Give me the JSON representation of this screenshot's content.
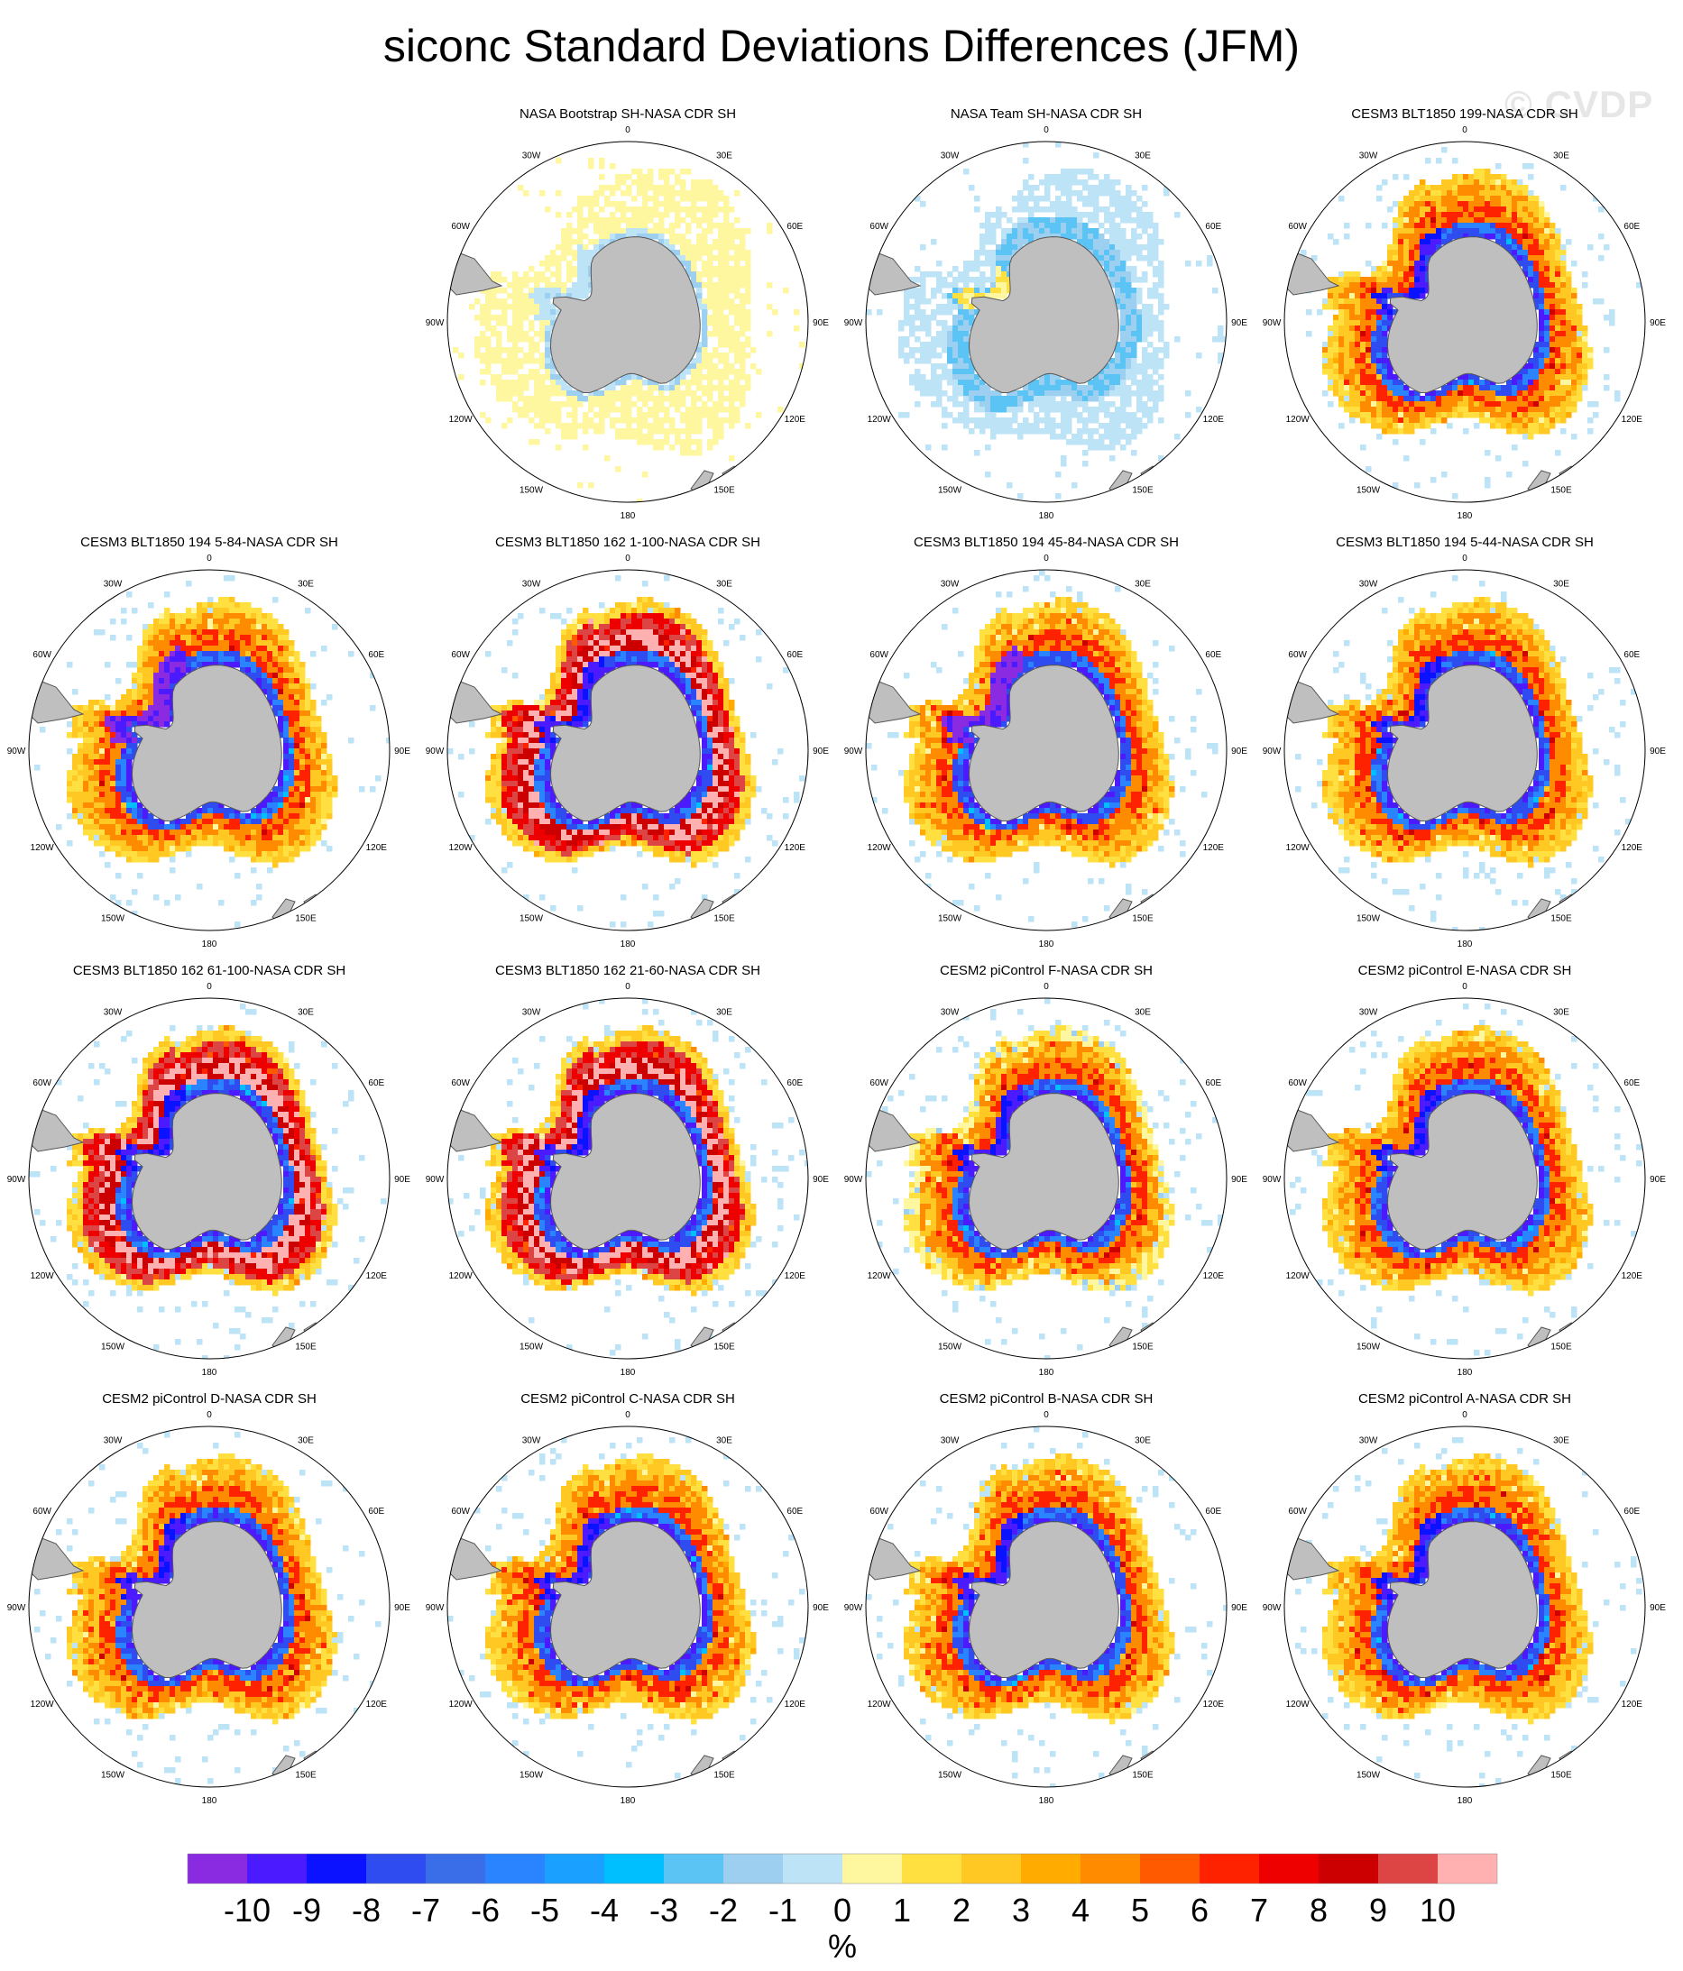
{
  "title": "siconc Standard Deviations Differences (JFM)",
  "watermark": "© CVDP",
  "chart_data": {
    "type": "heatmap",
    "projection": "south-polar-stereographic",
    "layout": {
      "rows": 4,
      "cols": 4,
      "first_row_empty_cells": 1
    },
    "land_color": "#bfbfbf",
    "lon_labels": [
      "0",
      "30E",
      "60E",
      "90E",
      "120E",
      "150E",
      "180",
      "150W",
      "120W",
      "90W",
      "60W",
      "30W"
    ],
    "panels": [
      {
        "title": "NASA Bootstrap SH-NASA CDR SH",
        "pattern": "obs-bootstrap"
      },
      {
        "title": "NASA Team SH-NASA CDR SH",
        "pattern": "obs-team"
      },
      {
        "title": "CESM3 BLT1850 199-NASA CDR SH",
        "pattern": "model"
      },
      {
        "title": "CESM3 BLT1850 194 5-84-NASA CDR SH",
        "pattern": "model-weddell-neg"
      },
      {
        "title": "CESM3 BLT1850 162 1-100-NASA CDR SH",
        "pattern": "model-strong"
      },
      {
        "title": "CESM3 BLT1850 194 45-84-NASA CDR SH",
        "pattern": "model-weddell-neg"
      },
      {
        "title": "CESM3 BLT1850 194 5-44-NASA CDR SH",
        "pattern": "model"
      },
      {
        "title": "CESM3 BLT1850 162 61-100-NASA CDR SH",
        "pattern": "model-strong"
      },
      {
        "title": "CESM3 BLT1850 162 21-60-NASA CDR SH",
        "pattern": "model-strong"
      },
      {
        "title": "CESM2 piControl F-NASA CDR SH",
        "pattern": "model-weak"
      },
      {
        "title": "CESM2 piControl E-NASA CDR SH",
        "pattern": "model"
      },
      {
        "title": "CESM2 piControl D-NASA CDR SH",
        "pattern": "model"
      },
      {
        "title": "CESM2 piControl C-NASA CDR SH",
        "pattern": "model"
      },
      {
        "title": "CESM2 piControl B-NASA CDR SH",
        "pattern": "model"
      },
      {
        "title": "CESM2 piControl A-NASA CDR SH",
        "pattern": "model"
      }
    ],
    "colorbar": {
      "unit": "%",
      "tick_labels": [
        "-10",
        "-9",
        "-8",
        "-7",
        "-6",
        "-5",
        "-4",
        "-3",
        "-2",
        "-1",
        "0",
        "1",
        "2",
        "3",
        "4",
        "5",
        "6",
        "7",
        "8",
        "9",
        "10"
      ],
      "colors": [
        "#8a2be2",
        "#4b1aff",
        "#0b12ff",
        "#2e4cf0",
        "#3a6ee8",
        "#2a84ff",
        "#1aa0ff",
        "#00bfff",
        "#5cc4f5",
        "#9dd0f0",
        "#bde3f7",
        "#fff7a0",
        "#ffe040",
        "#ffc822",
        "#ffab00",
        "#ff8c00",
        "#ff5a00",
        "#ff2200",
        "#ee0000",
        "#cc0000",
        "#dd4444",
        "#ffb0b0"
      ]
    }
  }
}
